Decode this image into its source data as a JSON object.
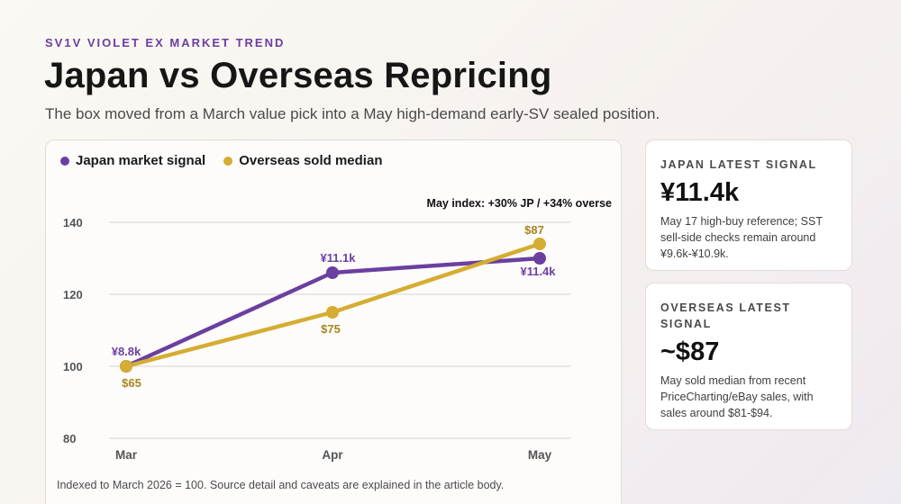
{
  "header": {
    "eyebrow": "SV1V VIOLET EX MARKET TREND",
    "title": "Japan vs Overseas Repricing",
    "subtitle": "The box moved from a March value pick into a May high-demand early-SV sealed position."
  },
  "colors": {
    "japan": "#6b3fa0",
    "overseas": "#d4ad32",
    "overseas_label": "#a8851e",
    "grid": "#dedad6"
  },
  "chart_data": {
    "type": "line",
    "categories": [
      "Mar",
      "Apr",
      "May"
    ],
    "ylim": [
      80,
      140
    ],
    "yticks": [
      80,
      100,
      120,
      140
    ],
    "grid": true,
    "legend_position": "top-left",
    "annotation": "May index: +30% JP / +34% overse",
    "series": [
      {
        "name": "Japan market signal",
        "values": [
          100,
          126,
          130
        ],
        "point_labels": [
          "¥8.8k",
          "¥11.1k",
          "¥11.4k"
        ]
      },
      {
        "name": "Overseas sold median",
        "values": [
          100,
          115,
          134
        ],
        "point_labels": [
          "$65",
          "$75",
          "$87"
        ]
      }
    ],
    "footnote": "Indexed to March 2026 = 100. Source detail and caveats are explained in the article body."
  },
  "cards": [
    {
      "label": "JAPAN LATEST SIGNAL",
      "value": "¥11.4k",
      "note": "May 17 high-buy reference; SST sell-side checks remain around ¥9.6k-¥10.9k."
    },
    {
      "label": "OVERSEAS LATEST SIGNAL",
      "value": "~$87",
      "note": "May sold median from recent PriceCharting/eBay sales, with sales around $81-$94."
    }
  ]
}
